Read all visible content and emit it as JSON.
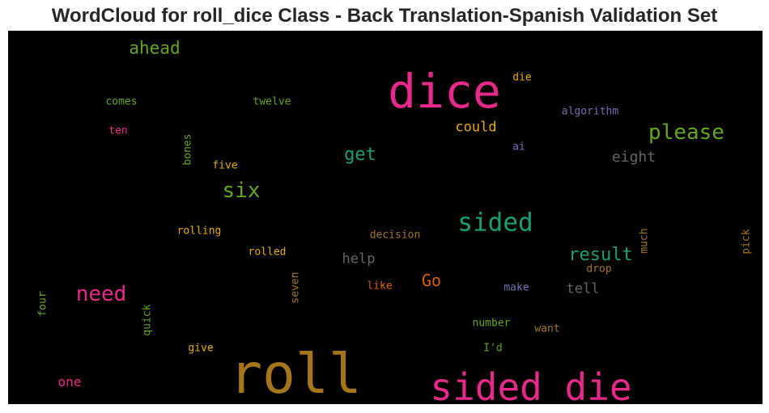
{
  "chart_data": {
    "type": "wordcloud",
    "title": "WordCloud for roll_dice Class - Back Translation-Spanish Validation Set",
    "background": "#000000",
    "words": [
      {
        "text": "dice",
        "color": "#e7298a",
        "vertical": false
      },
      {
        "text": "roll",
        "color": "#a6761d",
        "vertical": false
      },
      {
        "text": "sided die",
        "color": "#e7298a",
        "vertical": false
      },
      {
        "text": "sided",
        "color": "#1b9e77",
        "vertical": false
      },
      {
        "text": "please",
        "color": "#66a61e",
        "vertical": false
      },
      {
        "text": "six",
        "color": "#66a61e",
        "vertical": false
      },
      {
        "text": "need",
        "color": "#e7298a",
        "vertical": false
      },
      {
        "text": "ahead",
        "color": "#66a61e",
        "vertical": false
      },
      {
        "text": "result",
        "color": "#1b9e77",
        "vertical": false
      },
      {
        "text": "get",
        "color": "#1b9e77",
        "vertical": false
      },
      {
        "text": "Go",
        "color": "#d95f02",
        "vertical": false
      },
      {
        "text": "eight",
        "color": "#666666",
        "vertical": false
      },
      {
        "text": "could",
        "color": "#e6ab02",
        "vertical": false
      },
      {
        "text": "help",
        "color": "#666666",
        "vertical": false
      },
      {
        "text": "tell",
        "color": "#666666",
        "vertical": false
      },
      {
        "text": "one",
        "color": "#e7298a",
        "vertical": false
      },
      {
        "text": "comes",
        "color": "#66a61e",
        "vertical": false
      },
      {
        "text": "twelve",
        "color": "#66a61e",
        "vertical": false
      },
      {
        "text": "ten",
        "color": "#e7298a",
        "vertical": false
      },
      {
        "text": "die",
        "color": "#e6ab02",
        "vertical": false
      },
      {
        "text": "algorithm",
        "color": "#7570b3",
        "vertical": false
      },
      {
        "text": "ai",
        "color": "#7570b3",
        "vertical": false
      },
      {
        "text": "five",
        "color": "#e6ab02",
        "vertical": false
      },
      {
        "text": "rolling",
        "color": "#e6ab02",
        "vertical": false
      },
      {
        "text": "rolled",
        "color": "#e6ab02",
        "vertical": false
      },
      {
        "text": "decision",
        "color": "#a6761d",
        "vertical": false
      },
      {
        "text": "drop",
        "color": "#a6761d",
        "vertical": false
      },
      {
        "text": "like",
        "color": "#d95f02",
        "vertical": false
      },
      {
        "text": "make",
        "color": "#7570b3",
        "vertical": false
      },
      {
        "text": "number",
        "color": "#66a61e",
        "vertical": false
      },
      {
        "text": "want",
        "color": "#a6761d",
        "vertical": false
      },
      {
        "text": "give",
        "color": "#e6ab02",
        "vertical": false
      },
      {
        "text": "I'd",
        "color": "#66a61e",
        "vertical": false
      },
      {
        "text": "bones",
        "color": "#66a61e",
        "vertical": true
      },
      {
        "text": "seven",
        "color": "#a6761d",
        "vertical": true
      },
      {
        "text": "much",
        "color": "#a6761d",
        "vertical": true
      },
      {
        "text": "pick",
        "color": "#a6761d",
        "vertical": true
      },
      {
        "text": "four",
        "color": "#66a61e",
        "vertical": true
      },
      {
        "text": "quick",
        "color": "#66a61e",
        "vertical": true
      }
    ]
  }
}
